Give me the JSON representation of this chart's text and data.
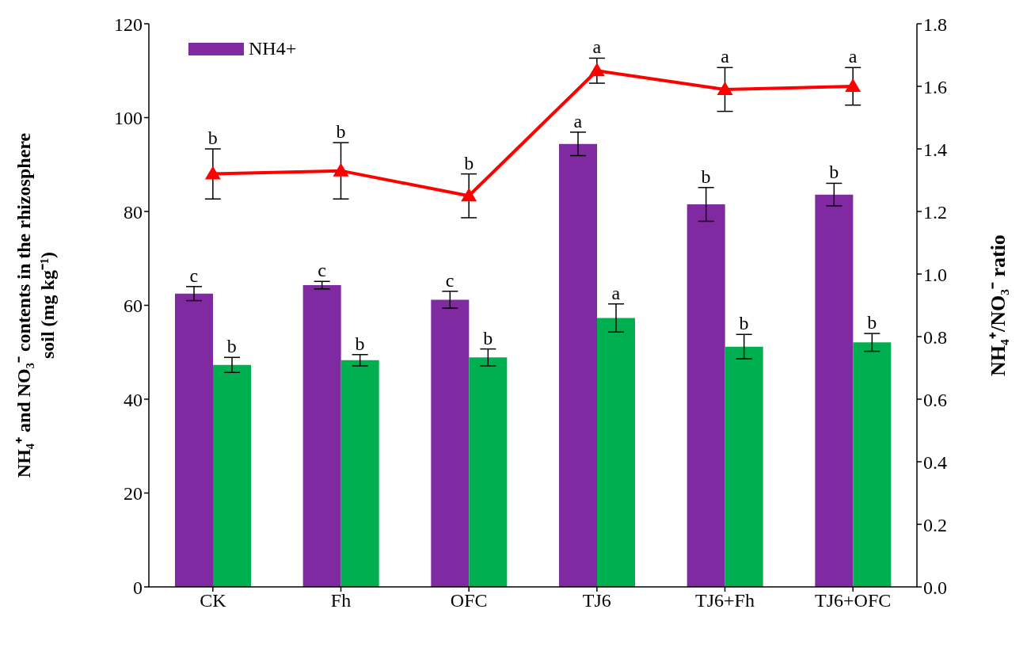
{
  "chart_data": {
    "type": "bar",
    "ylabel": "NH₄⁺ and NO₃⁻  contents in the rhizosphere soil (mg kg⁻¹)",
    "y2label": "NH₄⁺/NO₃⁻ ratio",
    "categories": [
      "CK",
      "Fh",
      "OFC",
      "TJ6",
      "TJ6+Fh",
      "TJ6+OFC"
    ],
    "series": [
      {
        "name": "NH4+",
        "color": "#7f2aa0",
        "values": [
          62.5,
          64.3,
          61.2,
          94.4,
          81.5,
          83.6
        ],
        "errors": [
          1.5,
          0.8,
          1.8,
          2.5,
          3.6,
          2.4
        ]
      },
      {
        "color": "#00b050",
        "values": [
          47.3,
          48.3,
          48.9,
          57.3,
          51.2,
          52.1
        ],
        "errors": [
          1.6,
          1.2,
          1.8,
          3.0,
          2.6,
          1.9
        ]
      },
      {
        "type": "line",
        "axis": "y2",
        "color": "#ff0000",
        "values": [
          1.32,
          1.33,
          1.25,
          1.65,
          1.59,
          1.6
        ],
        "errors": [
          0.08,
          0.09,
          0.07,
          0.04,
          0.07,
          0.06
        ]
      }
    ],
    "ylim": [
      0,
      120
    ],
    "yticks": [
      0,
      20,
      40,
      60,
      80,
      100,
      120
    ],
    "y2lim": [
      0,
      1.8
    ],
    "y2ticks": [
      {
        "value": 0,
        "label": "0.0"
      },
      0.2,
      0.4,
      0.6,
      0.8,
      {
        "value": 1,
        "label": "1.0"
      },
      1.2,
      1.4,
      1.6,
      1.8
    ],
    "marker": "triangle",
    "legend": "top left",
    "grid": false,
    "annotations": [
      {
        "text": "c",
        "x": "CK",
        "y": 62.5
      },
      {
        "text": "c",
        "x": "Fh",
        "y": 64.3
      },
      {
        "text": "c",
        "x": "OFC",
        "y": 61.2
      },
      {
        "text": "a",
        "x": "TJ6",
        "y": 94.4
      },
      {
        "text": "b",
        "x": "TJ6+Fh",
        "y": 81.5
      },
      {
        "text": "b",
        "x": "TJ6+OFC",
        "y": 83.6
      },
      {
        "text": "b",
        "x": "CK",
        "y": 47.3
      },
      {
        "text": "b",
        "x": "Fh",
        "y": 48.3
      },
      {
        "text": "b",
        "x": "OFC",
        "y": 48.9
      },
      {
        "text": "a",
        "x": "TJ6",
        "y": 57.3
      },
      {
        "text": "b",
        "x": "TJ6+Fh",
        "y": 51.2
      },
      {
        "text": "b",
        "x": "TJ6+OFC",
        "y": 52.1
      },
      {
        "text": "b",
        "x": "CK",
        "y": 88
      },
      {
        "text": "b",
        "x": "Fh",
        "y": 88.7
      },
      {
        "text": "b",
        "x": "OFC",
        "y": 83.3
      },
      {
        "text": "a",
        "x": "TJ6",
        "y": 110
      },
      {
        "text": "a",
        "x": "TJ6+Fh",
        "y": 106
      },
      {
        "text": "a",
        "x": "TJ6+OFC",
        "y": 106.7
      }
    ]
  }
}
